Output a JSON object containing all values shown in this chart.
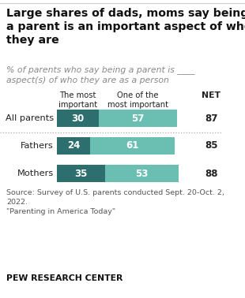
{
  "title": "Large shares of dads, moms say being\na parent is an important aspect of who\nthey are",
  "subtitle": "% of parents who say being a parent is ____\naspect(s) of who they are as a person",
  "categories": [
    "All parents",
    "Fathers",
    "Mothers"
  ],
  "most_important": [
    30,
    24,
    35
  ],
  "one_of_most": [
    57,
    61,
    53
  ],
  "net": [
    87,
    85,
    88
  ],
  "color_most": "#2d6e6e",
  "color_one_of_most": "#6bbfb2",
  "header1": "The most\nimportant",
  "header2": "One of the\nmost important",
  "net_label": "NET",
  "source_text": "Source: Survey of U.S. parents conducted Sept. 20-Oct. 2,\n2022.\n\"Parenting in America Today\"",
  "footer": "PEW RESEARCH CENTER",
  "bg_color": "#ffffff",
  "text_color": "#222222",
  "gray_text": "#888888",
  "source_color": "#555555"
}
